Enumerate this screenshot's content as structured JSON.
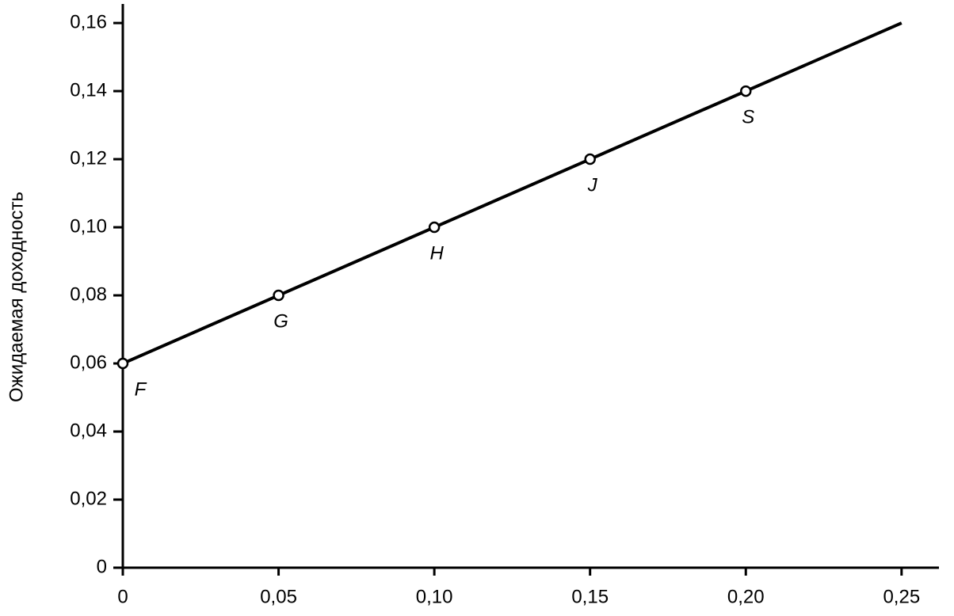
{
  "chart_data": {
    "type": "line",
    "y_label": "Ожидаемая доходность",
    "xlim": [
      0,
      0.262
    ],
    "ylim": [
      0,
      0.1656
    ],
    "xticks": [
      0,
      {
        "value": 0.05,
        "label": "0,05"
      },
      {
        "value": 0.1,
        "label": "0,10"
      },
      {
        "value": 0.15,
        "label": "0,15"
      },
      {
        "value": 0.2,
        "label": "0,20"
      },
      {
        "value": 0.25,
        "label": "0,25"
      }
    ],
    "yticks": [
      0,
      {
        "value": 0.02,
        "label": "0,02"
      },
      {
        "value": 0.04,
        "label": "0,04"
      },
      {
        "value": 0.06,
        "label": "0,06"
      },
      {
        "value": 0.08,
        "label": "0,08"
      },
      {
        "value": 0.1,
        "label": "0,10"
      },
      {
        "value": 0.12,
        "label": "0,12"
      },
      {
        "value": 0.14,
        "label": "0,14"
      },
      {
        "value": 0.16,
        "label": "0,16"
      }
    ],
    "series": [
      {
        "color": "#000000",
        "x": [
          0,
          0.05,
          0.1,
          0.15,
          0.2,
          0.25
        ],
        "values": [
          0.06,
          0.08,
          0.1,
          0.12,
          0.14,
          0.16
        ],
        "point_labels": [
          "F",
          "G",
          "H",
          "J",
          "S",
          null
        ]
      }
    ]
  }
}
